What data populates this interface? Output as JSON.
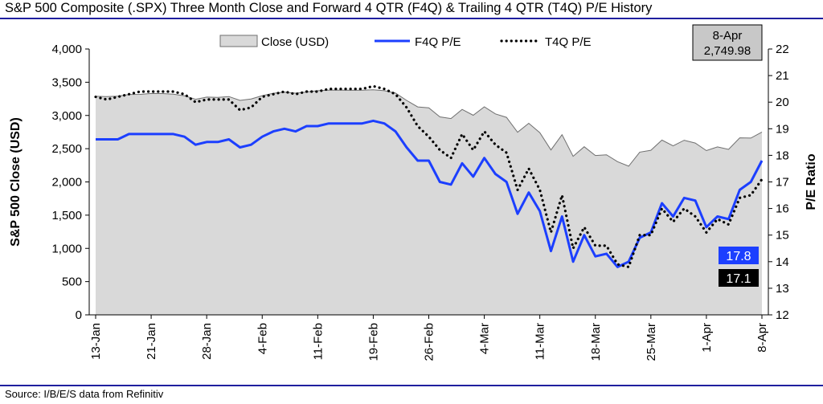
{
  "title": "S&P 500 Composite (.SPX) Three Month Close and Forward 4 QTR (F4Q) & Trailing 4 QTR (T4Q) P/E History",
  "source": "Source: I/B/E/S data from Refinitiv",
  "colors": {
    "area_fill": "#d9d9d9",
    "area_stroke": "#6f6f6f",
    "f4q": "#1c3fff",
    "t4q": "#000000",
    "rule": "#1f1f9f",
    "f4q_badge": "#1c3fff",
    "t4q_badge": "#000000",
    "date_box": "#c8c8c8"
  },
  "chart_data": {
    "type": "line",
    "title": "S&P 500 Composite (.SPX) Three Month Close and Forward 4 QTR (F4Q) & Trailing 4 QTR (T4Q) P/E History",
    "ylabel_left": "S&P 500 Close (USD)",
    "ylabel_right": "P/E Ratio",
    "ylim_left": [
      0,
      4000
    ],
    "yticks_left": [
      "0",
      "500",
      "1,000",
      "1,500",
      "2,000",
      "2,500",
      "3,000",
      "3,500",
      "4,000"
    ],
    "ylim_right": [
      12,
      22
    ],
    "yticks_right": [
      "12",
      "13",
      "14",
      "15",
      "16",
      "17",
      "18",
      "19",
      "20",
      "21",
      "22"
    ],
    "x_tick_labels": [
      "13-Jan",
      "21-Jan",
      "28-Jan",
      "4-Feb",
      "11-Feb",
      "19-Feb",
      "26-Feb",
      "4-Mar",
      "11-Mar",
      "18-Mar",
      "25-Mar",
      "1-Apr",
      "8-Apr"
    ],
    "legend_position": "top",
    "grid": false,
    "series": [
      {
        "name": "Close (USD)",
        "type": "area",
        "axis": "left",
        "values": [
          3288,
          3283,
          3289,
          3316,
          3317,
          3330,
          3329,
          3320,
          3296,
          3244,
          3276,
          3273,
          3284,
          3226,
          3248,
          3298,
          3334,
          3352,
          3335,
          3353,
          3373,
          3380,
          3381,
          3379,
          3380,
          3386,
          3373,
          3337,
          3226,
          3129,
          3116,
          2979,
          2954,
          3091,
          3003,
          3130,
          3024,
          2972,
          2747,
          2882,
          2741,
          2481,
          2711,
          2386,
          2529,
          2398,
          2409,
          2305,
          2237,
          2448,
          2476,
          2630,
          2542,
          2627,
          2585,
          2471,
          2527,
          2489,
          2664,
          2660,
          2750
        ]
      },
      {
        "name": "F4Q P/E",
        "type": "line",
        "axis": "right",
        "values": [
          18.6,
          18.6,
          18.6,
          18.8,
          18.8,
          18.8,
          18.8,
          18.8,
          18.7,
          18.4,
          18.5,
          18.5,
          18.6,
          18.3,
          18.4,
          18.7,
          18.9,
          19.0,
          18.9,
          19.1,
          19.1,
          19.2,
          19.2,
          19.2,
          19.2,
          19.3,
          19.2,
          18.9,
          18.3,
          17.8,
          17.8,
          17.0,
          16.9,
          17.7,
          17.2,
          17.9,
          17.3,
          17.0,
          15.8,
          16.6,
          15.9,
          14.4,
          15.7,
          14.0,
          15.0,
          14.2,
          14.3,
          13.8,
          14.0,
          14.9,
          15.1,
          16.2,
          15.7,
          16.4,
          16.3,
          15.3,
          15.7,
          15.6,
          16.7,
          17.0,
          17.8
        ]
      },
      {
        "name": "T4Q P/E",
        "type": "line",
        "axis": "right",
        "style": "dotted",
        "values": [
          20.2,
          20.1,
          20.2,
          20.3,
          20.4,
          20.4,
          20.4,
          20.4,
          20.3,
          20.0,
          20.1,
          20.1,
          20.1,
          19.7,
          19.8,
          20.2,
          20.3,
          20.4,
          20.3,
          20.4,
          20.4,
          20.5,
          20.5,
          20.5,
          20.5,
          20.6,
          20.5,
          20.3,
          19.8,
          19.1,
          18.7,
          18.2,
          17.9,
          18.8,
          18.2,
          18.9,
          18.4,
          18.1,
          16.7,
          17.5,
          16.7,
          15.1,
          16.5,
          14.5,
          15.3,
          14.6,
          14.6,
          13.9,
          13.8,
          15.0,
          15.0,
          16.0,
          15.5,
          16.0,
          15.7,
          15.1,
          15.6,
          15.4,
          16.4,
          16.5,
          17.1
        ]
      }
    ],
    "annotations": {
      "date_box": {
        "date": "8-Apr",
        "value": "2,749.98"
      },
      "f4q_last": "17.8",
      "t4q_last": "17.1"
    }
  }
}
